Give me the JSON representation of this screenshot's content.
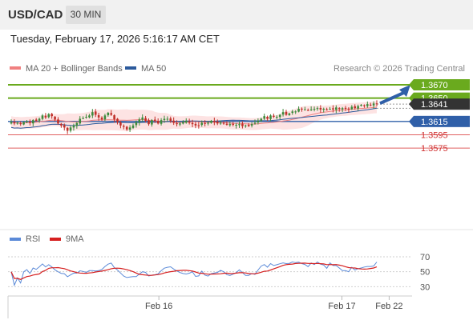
{
  "header": {
    "symbol": "USD/CAD",
    "timeframe": "30 MIN"
  },
  "datetime": "Tuesday, February 17, 2026 5:16:17 AM CET",
  "legend": {
    "ma20": {
      "label": "MA 20 + Bollinger Bands",
      "color": "#f08080"
    },
    "ma50": {
      "label": "MA 50",
      "color": "#2c5a9c"
    }
  },
  "credit": "Research © 2026 Trading Central",
  "rsi_legend": {
    "rsi": {
      "label": "RSI",
      "color": "#5b8ad8"
    },
    "ma9": {
      "label": "9MA",
      "color": "#d62020"
    }
  },
  "colors": {
    "green": "#6aaa1e",
    "blue": "#2f5fa8",
    "red": "#e06060",
    "dark": "#333333"
  },
  "chart_data": {
    "type": "candlestick",
    "symbol": "USD/CAD",
    "timeframe": "30 MIN",
    "price_levels": [
      {
        "value": 1.367,
        "label": "1.3670",
        "kind": "target"
      },
      {
        "value": 1.365,
        "label": "1.3650",
        "kind": "target"
      },
      {
        "value": 1.3641,
        "label": "1.3641",
        "kind": "last"
      },
      {
        "value": 1.3615,
        "label": "1.3615",
        "kind": "pivot"
      },
      {
        "value": 1.3595,
        "label": "1.3595",
        "kind": "support"
      },
      {
        "value": 1.3575,
        "label": "1.3575",
        "kind": "support"
      }
    ],
    "ylim": [
      1.356,
      1.3685
    ],
    "x_tick_labels": [
      "Feb 16",
      "Feb 17",
      "Feb 22"
    ],
    "x_ticks_index": [
      50,
      112,
      128
    ],
    "n_candles": 118,
    "closes": [
      1.3614,
      1.3612,
      1.3613,
      1.3611,
      1.3614,
      1.3615,
      1.3613,
      1.3617,
      1.3616,
      1.3619,
      1.3624,
      1.3621,
      1.3626,
      1.3623,
      1.3618,
      1.3612,
      1.3609,
      1.3606,
      1.3601,
      1.3606,
      1.3609,
      1.3613,
      1.3619,
      1.362,
      1.3622,
      1.3624,
      1.3629,
      1.3625,
      1.3621,
      1.3618,
      1.3624,
      1.3628,
      1.3625,
      1.3618,
      1.3614,
      1.3609,
      1.3607,
      1.3603,
      1.3606,
      1.3609,
      1.3614,
      1.3618,
      1.3621,
      1.3616,
      1.3611,
      1.3617,
      1.3616,
      1.3612,
      1.3617,
      1.3619,
      1.3619,
      1.3616,
      1.3613,
      1.3611,
      1.3612,
      1.3614,
      1.3616,
      1.3613,
      1.3611,
      1.3609,
      1.3609,
      1.3613,
      1.3612,
      1.3613,
      1.3616,
      1.3614,
      1.3612,
      1.3613,
      1.3612,
      1.361,
      1.3611,
      1.361,
      1.361,
      1.3611,
      1.3608,
      1.3609,
      1.3608,
      1.3611,
      1.3613,
      1.3616,
      1.3619,
      1.3623,
      1.3619,
      1.3624,
      1.3622,
      1.3622,
      1.3625,
      1.3629,
      1.3625,
      1.3627,
      1.363,
      1.363,
      1.3634,
      1.3633,
      1.3633,
      1.3632,
      1.3633,
      1.3634,
      1.3635,
      1.3633,
      1.3634,
      1.3633,
      1.3634,
      1.3633,
      1.3636,
      1.3634,
      1.3635,
      1.3634,
      1.3633,
      1.3637,
      1.3635,
      1.3638,
      1.364,
      1.3639,
      1.3641,
      1.364,
      1.3642,
      1.3641
    ],
    "rsi_levels": [
      70,
      50,
      30
    ],
    "rsi_ylim": [
      20,
      80
    ],
    "rsi_last": 63,
    "projection": {
      "from": 1.3641,
      "to": 1.367
    }
  }
}
